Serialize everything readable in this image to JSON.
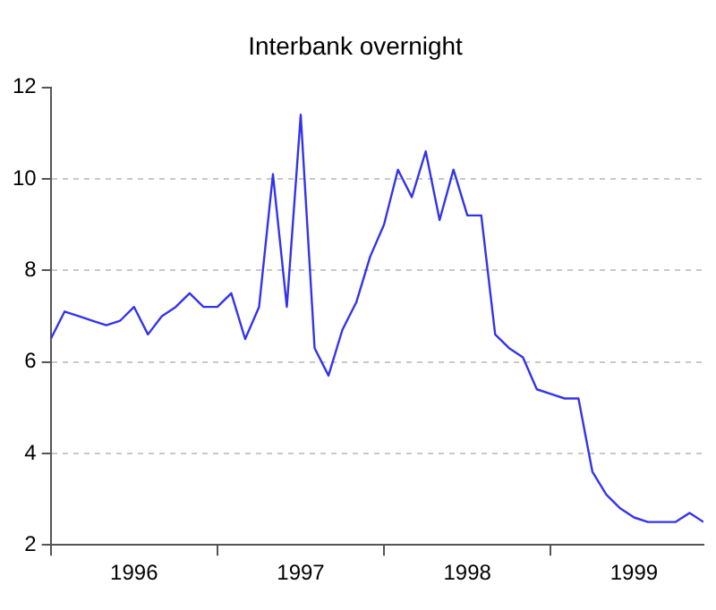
{
  "chart_data": {
    "type": "line",
    "title": "Interbank overnight",
    "x": [
      "1996-01",
      "1996-02",
      "1996-03",
      "1996-04",
      "1996-05",
      "1996-06",
      "1996-07",
      "1996-08",
      "1996-09",
      "1996-10",
      "1996-11",
      "1996-12",
      "1997-01",
      "1997-02",
      "1997-03",
      "1997-04",
      "1997-05",
      "1997-06",
      "1997-07",
      "1997-08",
      "1997-09",
      "1997-10",
      "1997-11",
      "1997-12",
      "1998-01",
      "1998-02",
      "1998-03",
      "1998-04",
      "1998-05",
      "1998-06",
      "1998-07",
      "1998-08",
      "1998-09",
      "1998-10",
      "1998-11",
      "1998-12",
      "1999-01",
      "1999-02",
      "1999-03",
      "1999-04",
      "1999-05",
      "1999-06",
      "1999-07",
      "1999-08",
      "1999-09",
      "1999-10",
      "1999-11",
      "1999-12"
    ],
    "series": [
      {
        "color": "#3333ee",
        "values": [
          6.5,
          7.1,
          7.0,
          6.9,
          6.8,
          6.9,
          7.2,
          6.6,
          7.0,
          7.2,
          7.5,
          7.2,
          7.2,
          7.5,
          6.5,
          7.2,
          10.1,
          7.2,
          11.4,
          6.3,
          5.7,
          6.7,
          7.3,
          8.3,
          9.0,
          10.2,
          9.6,
          10.6,
          9.1,
          10.2,
          9.2,
          9.2,
          6.6,
          6.3,
          6.1,
          5.4,
          5.3,
          5.2,
          5.2,
          3.6,
          3.1,
          2.8,
          2.6,
          2.5,
          2.5,
          2.5,
          2.7,
          2.5
        ]
      }
    ],
    "xlim": [
      "1996-01",
      "1999-12"
    ],
    "xticks": [
      {
        "value": "1996-01",
        "label": null
      },
      {
        "value": "1996-07",
        "label": "1996"
      },
      {
        "value": "1997-01",
        "label": null
      },
      {
        "value": "1997-07",
        "label": "1997"
      },
      {
        "value": "1998-01",
        "label": null
      },
      {
        "value": "1998-07",
        "label": "1998"
      },
      {
        "value": "1999-01",
        "label": null
      },
      {
        "value": "1999-07",
        "label": "1999"
      }
    ],
    "ylim": [
      2,
      12
    ],
    "yticks": [
      2,
      4,
      6,
      8,
      10,
      12
    ],
    "grid": "y",
    "legend": false,
    "marker": "none",
    "line_style": "solid"
  }
}
